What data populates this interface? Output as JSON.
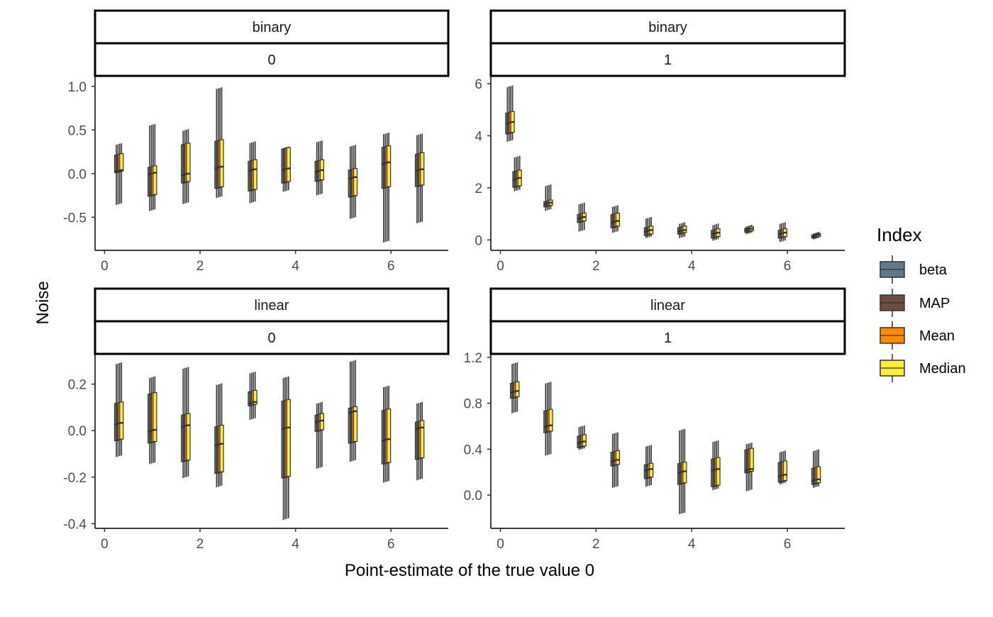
{
  "chart_data": {
    "type": "boxplot",
    "xlabel": "Point-estimate of the true value 0",
    "ylabel": "Noise",
    "legend": {
      "title": "Index",
      "position": "right",
      "entries": [
        {
          "label": "beta",
          "color": "#5f7a88"
        },
        {
          "label": "MAP",
          "color": "#6d4c41"
        },
        {
          "label": "Mean",
          "color": "#ff8c00"
        },
        {
          "label": "Median",
          "color": "#ffeb3b"
        }
      ]
    },
    "grid": false,
    "x_ticks": [
      0,
      2,
      4,
      6
    ],
    "xlim": [
      -0.2,
      7.2
    ],
    "x_positions": [
      0.3,
      1.0,
      1.7,
      2.4,
      3.1,
      3.8,
      4.5,
      5.2,
      5.9,
      6.6
    ],
    "panels": [
      {
        "strip_top": "binary",
        "strip_bottom": "0",
        "ylim": [
          -0.88,
          1.12
        ],
        "y_ticks": [
          -0.5,
          0.0,
          0.5,
          1.0
        ],
        "y_tick_labels": [
          "-0.5",
          "0.0",
          "0.5",
          "1.0"
        ],
        "groups": [
          [
            -0.35,
            0.02,
            0.03,
            0.22,
            0.34
          ],
          [
            -0.42,
            -0.25,
            0.0,
            0.08,
            0.56
          ],
          [
            -0.34,
            -0.1,
            -0.01,
            0.34,
            0.5
          ],
          [
            -0.27,
            -0.16,
            0.07,
            0.38,
            0.98
          ],
          [
            -0.33,
            -0.19,
            0.04,
            0.15,
            0.36
          ],
          [
            -0.2,
            -0.1,
            0.05,
            0.29,
            0.3
          ],
          [
            -0.24,
            -0.08,
            0.03,
            0.15,
            0.37
          ],
          [
            -0.51,
            -0.26,
            -0.05,
            0.05,
            0.32
          ],
          [
            -0.78,
            -0.16,
            0.12,
            0.31,
            0.46
          ],
          [
            -0.56,
            -0.14,
            0.04,
            0.23,
            0.45
          ]
        ]
      },
      {
        "strip_top": "binary",
        "strip_bottom": "1",
        "ylim": [
          -0.4,
          6.3
        ],
        "y_ticks": [
          0,
          2,
          4,
          6
        ],
        "y_tick_labels": [
          "0",
          "2",
          "4",
          "6"
        ],
        "groups": [
          [
            3.8,
            4.1,
            4.5,
            4.9,
            5.9
          ],
          [
            1.9,
            2.05,
            2.35,
            2.65,
            3.2
          ],
          [
            1.15,
            1.3,
            1.4,
            1.5,
            2.1
          ],
          [
            0.35,
            0.7,
            0.85,
            1.0,
            1.4
          ],
          [
            0.3,
            0.5,
            0.7,
            1.0,
            1.3
          ],
          [
            0.1,
            0.2,
            0.35,
            0.5,
            0.85
          ],
          [
            0.1,
            0.25,
            0.35,
            0.5,
            0.65
          ],
          [
            0.0,
            0.1,
            0.25,
            0.4,
            0.6
          ],
          [
            0.25,
            0.32,
            0.4,
            0.48,
            0.55
          ],
          [
            -0.05,
            0.1,
            0.25,
            0.4,
            0.65
          ],
          [
            0.05,
            0.1,
            0.17,
            0.22,
            0.28
          ]
        ],
        "group_x_override": [
          0.2,
          0.35,
          1.0,
          1.7,
          2.4,
          3.1,
          3.8,
          4.5,
          5.2,
          5.9,
          6.6
        ]
      },
      {
        "strip_top": "linear",
        "strip_bottom": "0",
        "ylim": [
          -0.42,
          0.33
        ],
        "y_ticks": [
          -0.4,
          -0.2,
          0.0,
          0.2
        ],
        "y_tick_labels": [
          "-0.4",
          "-0.2",
          "0.0",
          "0.2"
        ],
        "groups": [
          [
            -0.11,
            -0.04,
            0.03,
            0.12,
            0.29
          ],
          [
            -0.14,
            -0.05,
            0.0,
            0.16,
            0.23
          ],
          [
            -0.2,
            -0.13,
            0.02,
            0.07,
            0.27
          ],
          [
            -0.24,
            -0.18,
            -0.06,
            0.02,
            0.2
          ],
          [
            0.05,
            0.11,
            0.12,
            0.17,
            0.25
          ],
          [
            -0.38,
            -0.2,
            0.01,
            0.13,
            0.23
          ],
          [
            -0.16,
            0.0,
            0.04,
            0.07,
            0.12
          ],
          [
            -0.13,
            -0.05,
            0.08,
            0.1,
            0.3
          ],
          [
            -0.22,
            -0.14,
            -0.04,
            0.09,
            0.19
          ],
          [
            -0.21,
            -0.12,
            0.01,
            0.04,
            0.12
          ]
        ]
      },
      {
        "strip_top": "linear",
        "strip_bottom": "1",
        "ylim": [
          -0.29,
          1.23
        ],
        "y_ticks": [
          0.0,
          0.4,
          0.8,
          1.2
        ],
        "y_tick_labels": [
          "0.0",
          "0.4",
          "0.8",
          "1.2"
        ],
        "groups": [
          [
            0.72,
            0.85,
            0.9,
            0.98,
            1.15
          ],
          [
            0.35,
            0.55,
            0.6,
            0.74,
            0.98
          ],
          [
            0.4,
            0.42,
            0.46,
            0.52,
            0.6
          ],
          [
            0.07,
            0.26,
            0.3,
            0.38,
            0.54
          ],
          [
            0.08,
            0.15,
            0.22,
            0.27,
            0.43
          ],
          [
            -0.16,
            0.1,
            0.2,
            0.28,
            0.57
          ],
          [
            0.05,
            0.08,
            0.22,
            0.32,
            0.47
          ],
          [
            0.04,
            0.2,
            0.22,
            0.4,
            0.45
          ],
          [
            0.1,
            0.12,
            0.17,
            0.29,
            0.38
          ],
          [
            0.07,
            0.1,
            0.13,
            0.24,
            0.39
          ]
        ]
      }
    ]
  }
}
